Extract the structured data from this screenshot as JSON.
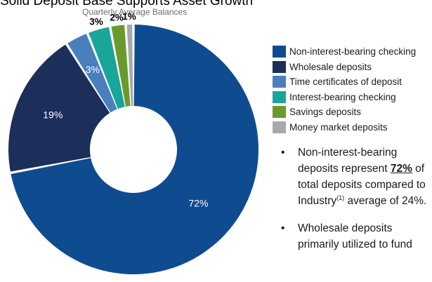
{
  "title": "Solid Deposit Base Supports Asset Growth",
  "chart_data": {
    "type": "donut",
    "subtitle": "Quarterly Average Balances",
    "series": [
      {
        "name": "Non-interest-bearing checking",
        "value": 72,
        "label": "72%",
        "color": "#0f4c8f"
      },
      {
        "name": "Wholesale deposits",
        "value": 19,
        "label": "19%",
        "color": "#1c2e5a"
      },
      {
        "name": "Time certificates of deposit",
        "value": 3,
        "label": "3%",
        "color": "#4a7fbd"
      },
      {
        "name": "Interest-bearing checking",
        "value": 3,
        "label": "3%",
        "color": "#1aa59a"
      },
      {
        "name": "Savings deposits",
        "value": 2,
        "label": "2%",
        "color": "#6a9a2c"
      },
      {
        "name": "Money market deposits",
        "value": 1,
        "label": "1%",
        "color": "#a7a9ac"
      }
    ]
  },
  "bullets": {
    "b1": {
      "pre": "Non-interest-bearing deposits represent ",
      "pct": "72%",
      "mid": " of total deposits compared to Industry",
      "sup": "(1)",
      "post": " average of 24%."
    },
    "b2": {
      "text": "Wholesale deposits primarily utilized to fund"
    }
  }
}
